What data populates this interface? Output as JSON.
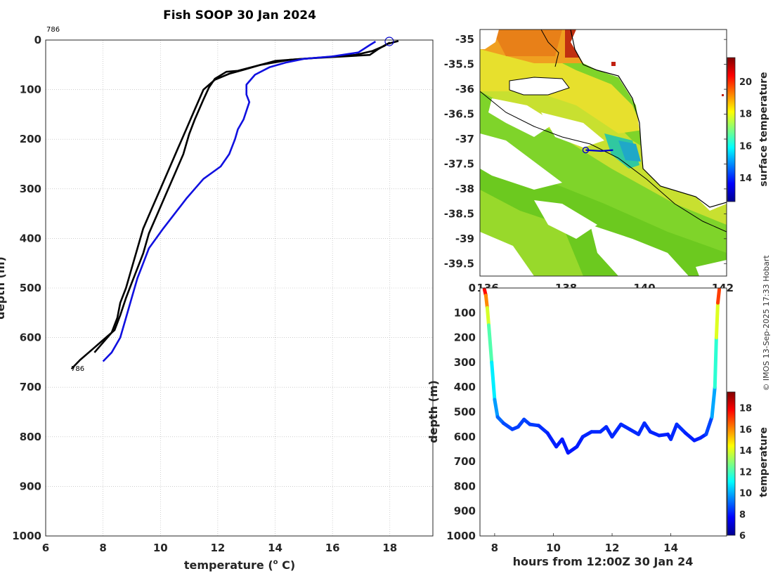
{
  "figure": {
    "title": "Fish SOOP 30 Jan 2024",
    "credit": "© IMOS 13-Sep-2025 17:33 Hobart",
    "profile_id": "786"
  },
  "colors": {
    "profile_black": "#000000",
    "profile_blue": "#1010e0",
    "grid": "#b0b0b0",
    "marker": "#0000cc"
  },
  "chart_data": [
    {
      "id": "profile",
      "type": "line",
      "title": "Fish SOOP 30 Jan 2024",
      "xlabel": "temperature (o C)",
      "xlabel_main": "temperature (",
      "xlabel_sup": "o",
      "xlabel_end": " C)",
      "ylabel": "depth (m)",
      "xlim": [
        6,
        19.5
      ],
      "ylim": [
        1000,
        0
      ],
      "xticks": [
        6,
        8,
        10,
        12,
        14,
        16,
        18
      ],
      "yticks": [
        0,
        100,
        200,
        300,
        400,
        500,
        600,
        700,
        800,
        900,
        1000
      ],
      "grid": true,
      "annotations": [
        {
          "text": "786",
          "x": 6.0,
          "y": -20
        },
        {
          "text": "786",
          "x": 6.85,
          "y": 663
        }
      ],
      "series": [
        {
          "name": "profile-1",
          "color": "black",
          "points": [
            [
              18.3,
              2
            ],
            [
              17.9,
              8
            ],
            [
              17.6,
              18
            ],
            [
              17.3,
              30
            ],
            [
              15.2,
              37
            ],
            [
              14.0,
              42
            ],
            [
              13.5,
              50
            ],
            [
              12.7,
              62
            ],
            [
              12.3,
              64
            ],
            [
              11.9,
              78
            ],
            [
              11.7,
              95
            ],
            [
              11.5,
              120
            ],
            [
              11.2,
              160
            ],
            [
              11.0,
              190
            ],
            [
              10.8,
              230
            ],
            [
              10.5,
              270
            ],
            [
              10.2,
              310
            ],
            [
              9.9,
              350
            ],
            [
              9.6,
              390
            ],
            [
              9.4,
              430
            ],
            [
              9.2,
              460
            ],
            [
              9.0,
              490
            ],
            [
              8.8,
              520
            ],
            [
              8.6,
              555
            ],
            [
              8.4,
              585
            ],
            [
              8.0,
              605
            ],
            [
              7.6,
              625
            ],
            [
              7.2,
              645
            ],
            [
              6.9,
              663
            ]
          ]
        },
        {
          "name": "profile-2",
          "color": "black",
          "points": [
            [
              18.0,
              5
            ],
            [
              17.8,
              12
            ],
            [
              17.4,
              22
            ],
            [
              16.8,
              30
            ],
            [
              14.5,
              40
            ],
            [
              13.5,
              50
            ],
            [
              12.9,
              60
            ],
            [
              12.4,
              68
            ],
            [
              11.9,
              80
            ],
            [
              11.5,
              100
            ],
            [
              11.2,
              140
            ],
            [
              10.9,
              180
            ],
            [
              10.6,
              220
            ],
            [
              10.3,
              260
            ],
            [
              10.0,
              300
            ],
            [
              9.7,
              340
            ],
            [
              9.4,
              380
            ],
            [
              9.2,
              420
            ],
            [
              9.0,
              460
            ],
            [
              8.8,
              500
            ],
            [
              8.6,
              530
            ],
            [
              8.5,
              560
            ],
            [
              8.3,
              590
            ],
            [
              8.0,
              610
            ],
            [
              7.7,
              630
            ]
          ]
        },
        {
          "name": "profile-3",
          "color": "blue",
          "points": [
            [
              17.5,
              3
            ],
            [
              17.3,
              10
            ],
            [
              16.9,
              25
            ],
            [
              16.0,
              33
            ],
            [
              15.0,
              38
            ],
            [
              14.4,
              45
            ],
            [
              13.8,
              55
            ],
            [
              13.3,
              70
            ],
            [
              13.0,
              90
            ],
            [
              13.0,
              110
            ],
            [
              13.1,
              125
            ],
            [
              12.9,
              160
            ],
            [
              12.7,
              180
            ],
            [
              12.6,
              200
            ],
            [
              12.4,
              230
            ],
            [
              12.1,
              255
            ],
            [
              11.5,
              280
            ],
            [
              11.2,
              300
            ],
            [
              10.9,
              320
            ],
            [
              10.5,
              350
            ],
            [
              10.1,
              380
            ],
            [
              9.6,
              420
            ],
            [
              9.4,
              450
            ],
            [
              9.2,
              480
            ],
            [
              9.0,
              520
            ],
            [
              8.8,
              560
            ],
            [
              8.6,
              600
            ],
            [
              8.3,
              630
            ],
            [
              8.0,
              648
            ]
          ]
        }
      ]
    },
    {
      "id": "sst-map",
      "type": "heatmap",
      "xlim": [
        135.8,
        142.1
      ],
      "ylim": [
        -39.75,
        -34.8
      ],
      "xticks": [
        136,
        138,
        140,
        142
      ],
      "yticks": [
        -35,
        -35.5,
        -36,
        -36.5,
        -37,
        -37.5,
        -38,
        -38.5,
        -39,
        -39.5
      ],
      "colorbar": {
        "label": "surface temperature",
        "range": [
          12.5,
          21.5
        ],
        "ticks": [
          14,
          16,
          18,
          20
        ]
      },
      "track": [
        [
          138.5,
          -37.22
        ],
        [
          138.9,
          -37.24
        ],
        [
          139.2,
          -37.22
        ]
      ]
    },
    {
      "id": "time-depth",
      "type": "scatter",
      "xlabel": "hours from 12:00Z 30 Jan 24",
      "ylabel": "depth (m)",
      "xlim": [
        7.5,
        15.9
      ],
      "ylim": [
        1000,
        0
      ],
      "xticks": [
        8,
        10,
        12,
        14
      ],
      "yticks": [
        0,
        100,
        200,
        300,
        400,
        500,
        600,
        700,
        800,
        900,
        1000
      ],
      "colorbar": {
        "label": "temperature",
        "range": [
          6,
          19.5
        ],
        "ticks": [
          6,
          8,
          10,
          12,
          14,
          16,
          18
        ]
      },
      "track": [
        [
          7.65,
          5,
          18.5
        ],
        [
          7.7,
          30,
          17
        ],
        [
          7.75,
          80,
          15
        ],
        [
          7.8,
          150,
          12.8
        ],
        [
          7.9,
          300,
          11.5
        ],
        [
          8.0,
          450,
          10.2
        ],
        [
          8.1,
          520,
          9.3
        ],
        [
          8.3,
          545,
          8.8
        ],
        [
          8.6,
          570,
          8.5
        ],
        [
          8.8,
          560,
          8.5
        ],
        [
          9.0,
          530,
          8.6
        ],
        [
          9.2,
          550,
          8.5
        ],
        [
          9.5,
          555,
          8.4
        ],
        [
          9.8,
          585,
          8.2
        ],
        [
          10.1,
          640,
          8.0
        ],
        [
          10.3,
          610,
          8.1
        ],
        [
          10.5,
          665,
          7.9
        ],
        [
          10.8,
          640,
          8.0
        ],
        [
          11.0,
          600,
          8.1
        ],
        [
          11.3,
          580,
          8.2
        ],
        [
          11.6,
          580,
          8.2
        ],
        [
          11.8,
          560,
          8.3
        ],
        [
          12.0,
          600,
          8.1
        ],
        [
          12.3,
          550,
          8.3
        ],
        [
          12.6,
          570,
          8.2
        ],
        [
          12.9,
          590,
          8.2
        ],
        [
          13.1,
          545,
          8.3
        ],
        [
          13.3,
          580,
          8.2
        ],
        [
          13.6,
          595,
          8.1
        ],
        [
          13.9,
          590,
          8.1
        ],
        [
          14.0,
          610,
          8.0
        ],
        [
          14.2,
          550,
          8.4
        ],
        [
          14.5,
          585,
          8.2
        ],
        [
          14.8,
          615,
          8.0
        ],
        [
          15.0,
          605,
          8.1
        ],
        [
          15.2,
          590,
          8.2
        ],
        [
          15.4,
          520,
          9.0
        ],
        [
          15.5,
          400,
          10.8
        ],
        [
          15.55,
          200,
          12.5
        ],
        [
          15.6,
          60,
          15.5
        ],
        [
          15.65,
          5,
          18.5
        ]
      ]
    }
  ]
}
